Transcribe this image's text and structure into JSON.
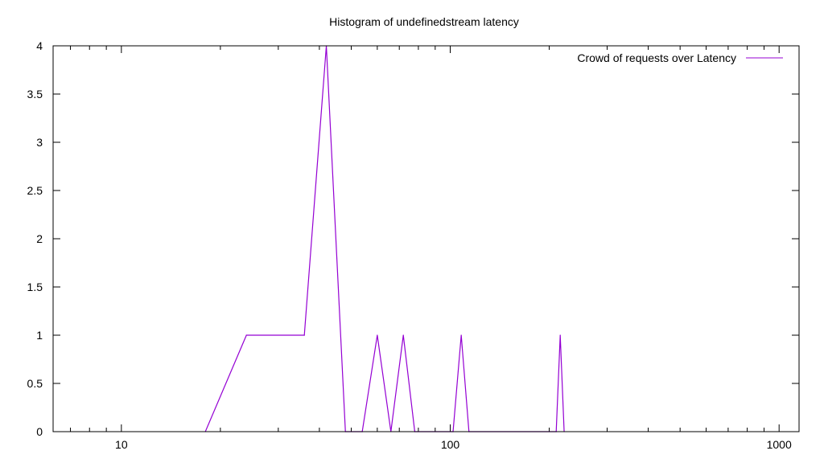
{
  "chart_data": {
    "type": "line",
    "title": "Histogram of undefinedstream latency",
    "xlabel": "",
    "ylabel": "",
    "x_scale": "log",
    "xlim": [
      6.2,
      1150
    ],
    "ylim": [
      0,
      4
    ],
    "x_ticks": [
      10,
      100,
      1000
    ],
    "x_tick_labels": [
      "10",
      "100",
      "1000"
    ],
    "y_ticks": [
      0,
      0.5,
      1,
      1.5,
      2,
      2.5,
      3,
      3.5,
      4
    ],
    "y_tick_labels": [
      "0",
      "0.5",
      "1",
      "1.5",
      "2",
      "2.5",
      "3",
      "3.5",
      "4"
    ],
    "grid": false,
    "legend_position": "top-right",
    "series": [
      {
        "name": "Crowd of requests over Latency",
        "color": "#9400d3",
        "x": [
          18,
          24,
          36,
          42,
          48,
          54,
          60,
          66,
          72,
          78,
          102,
          108,
          114,
          210,
          216,
          222
        ],
        "y": [
          0,
          1,
          1,
          4,
          0,
          0,
          1,
          0,
          1,
          0,
          0,
          1,
          0,
          0,
          1,
          0
        ]
      }
    ]
  }
}
